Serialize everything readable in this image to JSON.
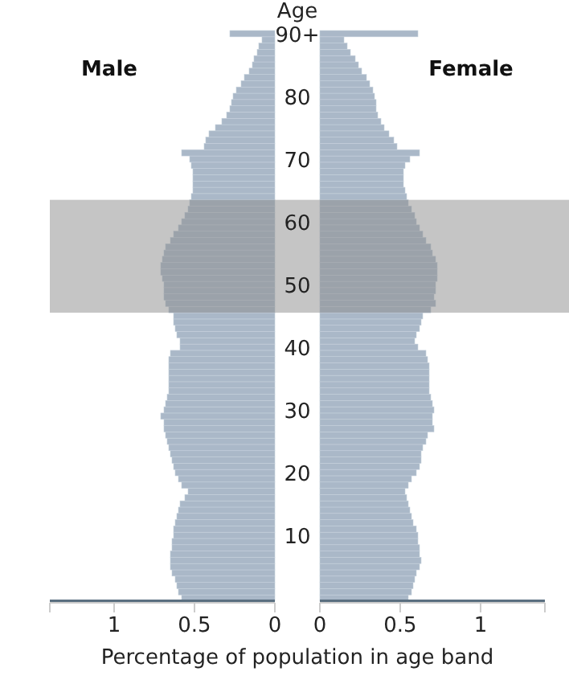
{
  "chart_data": [
    {
      "type": "bar",
      "orientation": "horizontal",
      "title": "Male",
      "xlabel": "Percentage of population in age band",
      "color": "#aab8c8",
      "tick_labels": "x",
      "x": [
        0,
        1,
        2,
        3,
        4,
        5,
        6,
        7,
        8,
        9,
        10,
        11,
        12,
        13,
        14,
        15,
        16,
        17,
        18,
        19,
        20,
        21,
        22,
        23,
        24,
        25,
        26,
        27,
        28,
        29,
        30,
        31,
        32,
        33,
        34,
        35,
        36,
        37,
        38,
        39,
        40,
        41,
        42,
        43,
        44,
        45,
        46,
        47,
        48,
        49,
        50,
        51,
        52,
        53,
        54,
        55,
        56,
        57,
        58,
        59,
        60,
        61,
        62,
        63,
        64,
        65,
        66,
        67,
        68,
        69,
        70,
        71,
        72,
        73,
        74,
        75,
        76,
        77,
        78,
        79,
        80,
        81,
        82,
        83,
        84,
        85,
        86,
        87,
        88,
        89,
        90
      ],
      "values": [
        0.58,
        0.6,
        0.61,
        0.62,
        0.64,
        0.65,
        0.65,
        0.65,
        0.64,
        0.64,
        0.63,
        0.63,
        0.62,
        0.61,
        0.6,
        0.59,
        0.56,
        0.54,
        0.58,
        0.6,
        0.62,
        0.63,
        0.64,
        0.65,
        0.66,
        0.67,
        0.68,
        0.69,
        0.69,
        0.71,
        0.69,
        0.68,
        0.67,
        0.66,
        0.66,
        0.66,
        0.66,
        0.66,
        0.66,
        0.65,
        0.59,
        0.59,
        0.61,
        0.62,
        0.63,
        0.63,
        0.66,
        0.68,
        0.69,
        0.69,
        0.69,
        0.7,
        0.71,
        0.71,
        0.7,
        0.69,
        0.68,
        0.65,
        0.63,
        0.6,
        0.58,
        0.56,
        0.54,
        0.53,
        0.52,
        0.51,
        0.51,
        0.51,
        0.51,
        0.52,
        0.53,
        0.58,
        0.44,
        0.43,
        0.41,
        0.37,
        0.33,
        0.3,
        0.28,
        0.27,
        0.26,
        0.24,
        0.21,
        0.19,
        0.16,
        0.14,
        0.13,
        0.11,
        0.1,
        0.08,
        0.28
      ],
      "xlim": [
        1.4,
        0
      ],
      "xticks": [
        {
          "value": 1.4,
          "label": null
        },
        1,
        0.5,
        0
      ],
      "ylim": [
        -0.5,
        90.5
      ],
      "bands": [
        {
          "axis": "y",
          "from": 45.5,
          "to": 63.5,
          "color": "#8c8c8c"
        }
      ]
    },
    {
      "type": "bar",
      "orientation": "horizontal",
      "title": "Female",
      "ylabel": "Age",
      "color": "#aab8c8",
      "x": [
        0,
        1,
        2,
        3,
        4,
        5,
        6,
        7,
        8,
        9,
        10,
        11,
        12,
        13,
        14,
        15,
        16,
        17,
        18,
        19,
        20,
        21,
        22,
        23,
        24,
        25,
        26,
        27,
        28,
        29,
        30,
        31,
        32,
        33,
        34,
        35,
        36,
        37,
        38,
        39,
        40,
        41,
        42,
        43,
        44,
        45,
        46,
        47,
        48,
        49,
        50,
        51,
        52,
        53,
        54,
        55,
        56,
        57,
        58,
        59,
        60,
        61,
        62,
        63,
        64,
        65,
        66,
        67,
        68,
        69,
        70,
        71,
        72,
        73,
        74,
        75,
        76,
        77,
        78,
        79,
        80,
        81,
        82,
        83,
        84,
        85,
        86,
        87,
        88,
        89,
        90
      ],
      "values": [
        0.55,
        0.57,
        0.58,
        0.59,
        0.6,
        0.62,
        0.63,
        0.62,
        0.62,
        0.61,
        0.61,
        0.6,
        0.58,
        0.57,
        0.56,
        0.55,
        0.54,
        0.53,
        0.55,
        0.57,
        0.6,
        0.62,
        0.63,
        0.63,
        0.64,
        0.66,
        0.67,
        0.71,
        0.7,
        0.7,
        0.71,
        0.7,
        0.69,
        0.68,
        0.68,
        0.68,
        0.68,
        0.68,
        0.67,
        0.66,
        0.61,
        0.59,
        0.6,
        0.62,
        0.63,
        0.64,
        0.69,
        0.72,
        0.71,
        0.72,
        0.72,
        0.73,
        0.73,
        0.73,
        0.72,
        0.7,
        0.69,
        0.66,
        0.64,
        0.62,
        0.6,
        0.59,
        0.57,
        0.55,
        0.54,
        0.53,
        0.52,
        0.52,
        0.52,
        0.53,
        0.56,
        0.62,
        0.48,
        0.46,
        0.43,
        0.4,
        0.38,
        0.36,
        0.35,
        0.35,
        0.34,
        0.33,
        0.31,
        0.29,
        0.26,
        0.24,
        0.22,
        0.19,
        0.17,
        0.15,
        0.61
      ],
      "xlim": [
        0,
        1.4
      ],
      "xticks": [
        0,
        0.5,
        1,
        {
          "value": 1.4,
          "label": null
        }
      ],
      "ylim": [
        -0.5,
        90.5
      ],
      "yticks": [
        10,
        20,
        30,
        40,
        50,
        60,
        70,
        80,
        {
          "value": 90,
          "label": "90+"
        }
      ],
      "bands": [
        {
          "axis": "y",
          "from": 45.5,
          "to": 63.5,
          "color": "#8c8c8c"
        }
      ]
    }
  ]
}
